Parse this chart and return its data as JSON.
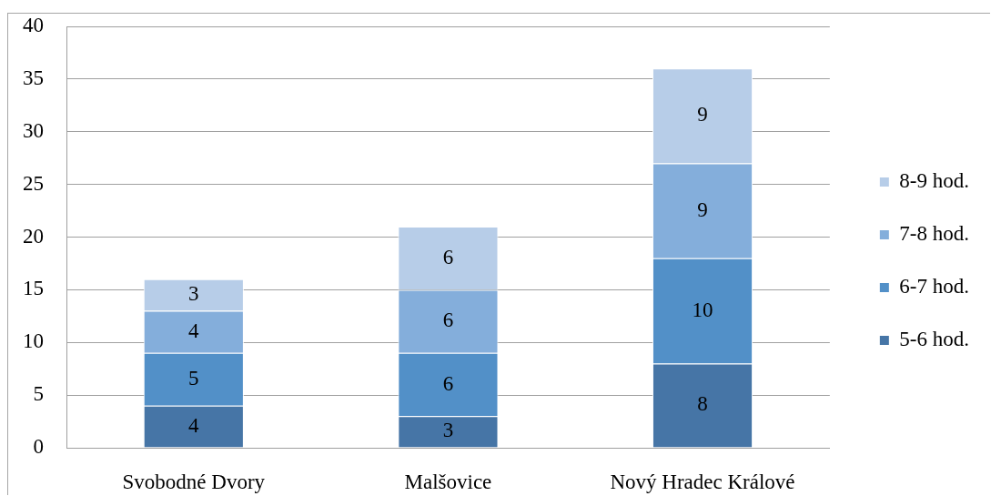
{
  "chart_data": {
    "type": "bar",
    "stacked": true,
    "categories": [
      "Svobodné Dvory",
      "Malšovice",
      "Nový Hradec Králové"
    ],
    "series": [
      {
        "name": "5-6 hod.",
        "color": "#4675a6",
        "values": [
          4,
          3,
          8
        ]
      },
      {
        "name": "6-7 hod.",
        "color": "#5290c8",
        "values": [
          5,
          6,
          10
        ]
      },
      {
        "name": "7-8 hod.",
        "color": "#84aedb",
        "values": [
          4,
          6,
          9
        ]
      },
      {
        "name": "8-9 hod.",
        "color": "#b7cde8",
        "values": [
          3,
          6,
          9
        ]
      }
    ],
    "ylim": [
      0,
      40
    ],
    "yticks": [
      0,
      5,
      10,
      15,
      20,
      25,
      30,
      35,
      40
    ],
    "grid": "y",
    "legend": "right",
    "data_labels": true
  }
}
